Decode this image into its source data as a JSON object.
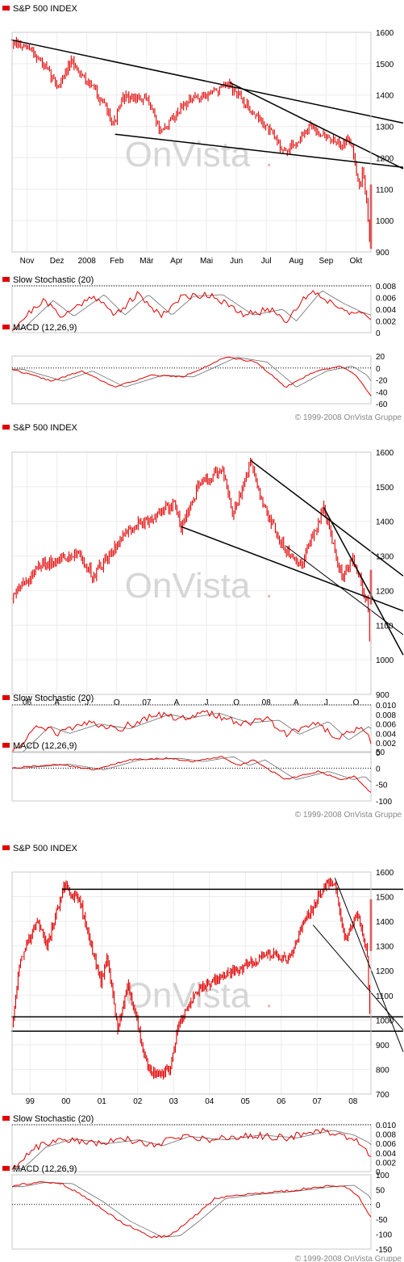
{
  "colors": {
    "price": "#e00000",
    "fast_line": "#6a6a6a",
    "trend": "#000000",
    "watermark": "#d6d6d6",
    "frame": "#c8c8c8",
    "copyright": "#888888"
  },
  "watermark": {
    "brand": "OnVista",
    "dot": "."
  },
  "copyright": "© 1999-2008 OnVista Gruppe",
  "chart_data": [
    {
      "type": "line",
      "title": "S&P 500 INDEX",
      "period": "1 year daily",
      "x_tick_labels": [
        "Nov",
        "Dez",
        "2008",
        "Feb",
        "Mär",
        "Apr",
        "Mai",
        "Jun",
        "Jul",
        "Aug",
        "Sep",
        "Okt"
      ],
      "ylim": [
        900,
        1600
      ],
      "y_ticks": [
        1600,
        1500,
        1400,
        1300,
        1200,
        1100,
        1000,
        900
      ],
      "x": [
        "2007-10-10",
        "2007-10-31",
        "2007-11-26",
        "2007-12-10",
        "2008-01-04",
        "2008-01-22",
        "2008-02-01",
        "2008-02-27",
        "2008-03-10",
        "2008-04-01",
        "2008-05-01",
        "2008-05-19",
        "2008-06-06",
        "2008-06-30",
        "2008-07-15",
        "2008-08-11",
        "2008-09-05",
        "2008-09-19",
        "2008-09-29",
        "2008-10-01",
        "2008-10-06",
        "2008-10-09",
        "2008-10-10"
      ],
      "y": [
        1565,
        1540,
        1430,
        1505,
        1410,
        1310,
        1395,
        1380,
        1275,
        1370,
        1410,
        1430,
        1365,
        1280,
        1215,
        1300,
        1245,
        1255,
        1105,
        1165,
        1055,
        910,
        995
      ],
      "trend_lines": [
        {
          "from": [
            "2007-10-09",
            1576
          ],
          "to": [
            "2008-10-14",
            1330
          ]
        },
        {
          "from": [
            "2008-01-23",
            1275
          ],
          "to": [
            "2008-10-14",
            1180
          ]
        },
        {
          "from": [
            "2008-05-19",
            1440
          ],
          "to": [
            "2008-10-14",
            1210
          ]
        }
      ],
      "indicators": [
        {
          "name": "Slow Stochastic (20)",
          "ylim": [
            0,
            0.008
          ],
          "y_ticks": [
            0.008,
            0.006,
            0.004,
            0.002,
            0.0
          ],
          "signal_level": 0.008,
          "x": [
            "2007-10-10",
            "2007-11-10",
            "2007-12-01",
            "2008-01-01",
            "2008-01-22",
            "2008-02-15",
            "2008-03-10",
            "2008-04-01",
            "2008-05-01",
            "2008-06-01",
            "2008-07-01",
            "2008-07-15",
            "2008-08-10",
            "2008-09-01",
            "2008-09-20",
            "2008-10-10"
          ],
          "y": [
            0.0006,
            0.0055,
            0.0028,
            0.0065,
            0.003,
            0.0065,
            0.003,
            0.0062,
            0.0065,
            0.003,
            0.004,
            0.002,
            0.0072,
            0.005,
            0.0035,
            0.0024
          ]
        },
        {
          "name": "MACD (12,26,9)",
          "ylim": [
            -60,
            20
          ],
          "y_ticks": [
            20,
            0,
            -20,
            -40,
            -60
          ],
          "signal_level": 0,
          "x": [
            "2007-10-10",
            "2007-11-20",
            "2007-12-20",
            "2008-01-22",
            "2008-03-01",
            "2008-04-01",
            "2008-05-15",
            "2008-06-15",
            "2008-07-15",
            "2008-08-15",
            "2008-09-10",
            "2008-09-25",
            "2008-10-10"
          ],
          "y": [
            -2,
            -22,
            -5,
            -32,
            -12,
            -15,
            18,
            10,
            -32,
            -5,
            3,
            -12,
            -48
          ]
        }
      ]
    },
    {
      "type": "line",
      "title": "S&P 500 INDEX",
      "period": "3 years",
      "x_tick_labels": [
        "06",
        "A",
        "J",
        "O",
        "07",
        "A",
        "J",
        "O",
        "08",
        "A",
        "J",
        "O"
      ],
      "ylim": [
        900,
        1600
      ],
      "y_ticks": [
        1600,
        1500,
        1400,
        1300,
        1200,
        1100,
        1000,
        900
      ],
      "x": [
        "2005-10-10",
        "2006-01-01",
        "2006-05-01",
        "2006-06-15",
        "2006-10-01",
        "2007-01-01",
        "2007-02-20",
        "2007-03-10",
        "2007-05-01",
        "2007-07-15",
        "2007-08-15",
        "2007-10-09",
        "2007-11-20",
        "2008-01-22",
        "2008-03-10",
        "2008-05-19",
        "2008-07-15",
        "2008-08-15",
        "2008-09-15",
        "2008-10-01",
        "2008-10-10"
      ],
      "y": [
        1180,
        1270,
        1310,
        1240,
        1380,
        1420,
        1455,
        1380,
        1500,
        1550,
        1420,
        1565,
        1440,
        1320,
        1275,
        1440,
        1230,
        1300,
        1200,
        1160,
        995
      ],
      "trend_lines": [
        {
          "from": [
            "2007-10-09",
            1576
          ],
          "to": [
            "2008-10-14",
            1310
          ]
        },
        {
          "from": [
            "2007-03-10",
            1385
          ],
          "to": [
            "2008-10-14",
            1175
          ]
        },
        {
          "from": [
            "2008-05-19",
            1440
          ],
          "to": [
            "2008-10-14",
            1180
          ]
        },
        {
          "from": [
            "2008-01-22",
            1330
          ],
          "to": [
            "2008-10-14",
            1140
          ]
        }
      ],
      "indicators": [
        {
          "name": "Slow Stochastic (20)",
          "ylim": [
            0,
            0.01
          ],
          "y_ticks": [
            0.01,
            0.008,
            0.006,
            0.004,
            0.002,
            0.0
          ],
          "signal_level": 0.01,
          "x": [
            "2005-10-10",
            "2006-01-01",
            "2006-03-01",
            "2006-06-01",
            "2006-09-01",
            "2007-01-01",
            "2007-03-01",
            "2007-06-01",
            "2007-09-01",
            "2007-12-01",
            "2008-02-01",
            "2008-05-01",
            "2008-07-01",
            "2008-09-01",
            "2008-10-10"
          ],
          "y": [
            0.0001,
            0.0055,
            0.004,
            0.006,
            0.005,
            0.008,
            0.0072,
            0.0083,
            0.0062,
            0.0068,
            0.0038,
            0.0065,
            0.0026,
            0.0055,
            0.0025
          ]
        },
        {
          "name": "MACD (12,26,9)",
          "ylim": [
            -100,
            50
          ],
          "y_ticks": [
            50,
            0,
            -50,
            -100
          ],
          "signal_level": 0,
          "x": [
            "2005-10-10",
            "2006-03-01",
            "2006-06-15",
            "2006-10-01",
            "2007-02-01",
            "2007-04-15",
            "2007-07-15",
            "2007-09-01",
            "2007-10-20",
            "2008-01-22",
            "2008-05-01",
            "2008-07-15",
            "2008-08-20",
            "2008-10-10"
          ],
          "y": [
            0,
            12,
            -5,
            25,
            30,
            20,
            35,
            8,
            25,
            -35,
            -10,
            -35,
            -25,
            -75
          ]
        }
      ]
    },
    {
      "type": "line",
      "title": "S&P 500 INDEX",
      "period": "10 years",
      "x_tick_labels": [
        "99",
        "00",
        "01",
        "02",
        "03",
        "04",
        "05",
        "06",
        "07",
        "08"
      ],
      "ylim": [
        700,
        1600
      ],
      "y_ticks": [
        1600,
        1500,
        1400,
        1300,
        1200,
        1100,
        1000,
        900,
        800,
        700
      ],
      "x": [
        "1998-10-10",
        "1999-01-01",
        "1999-07-01",
        "1999-10-01",
        "2000-03-24",
        "2000-09-01",
        "2001-04-01",
        "2001-06-01",
        "2001-09-21",
        "2002-01-01",
        "2002-07-23",
        "2002-10-09",
        "2003-03-11",
        "2003-06-01",
        "2004-01-01",
        "2005-01-01",
        "2006-01-01",
        "2006-06-15",
        "2007-01-01",
        "2007-07-15",
        "2007-10-09",
        "2008-01-22",
        "2008-05-19",
        "2008-09-01",
        "2008-10-10"
      ],
      "y": [
        980,
        1250,
        1400,
        1300,
        1545,
        1480,
        1150,
        1250,
        960,
        1150,
        800,
        780,
        800,
        980,
        1130,
        1200,
        1270,
        1240,
        1420,
        1550,
        1565,
        1320,
        1430,
        1280,
        910
      ],
      "trend_lines": [
        {
          "from": [
            "2000-03-01",
            1530
          ],
          "to": [
            "2008-10-14",
            1530
          ]
        },
        {
          "from": [
            "1998-10-01",
            1013
          ],
          "to": [
            "2008-10-14",
            1013
          ]
        },
        {
          "from": [
            "1998-10-01",
            955
          ],
          "to": [
            "2008-10-14",
            955
          ]
        },
        {
          "from": [
            "2007-10-09",
            1576
          ],
          "to": [
            "2008-10-14",
            1200
          ]
        },
        {
          "from": [
            "2007-03-01",
            1385
          ],
          "to": [
            "2008-10-14",
            1110
          ]
        }
      ],
      "indicators": [
        {
          "name": "Slow Stochastic (20)",
          "ylim": [
            0,
            0.01
          ],
          "y_ticks": [
            0.01,
            0.008,
            0.006,
            0.004,
            0.002,
            0.0
          ],
          "signal_level": 0.01,
          "x": [
            "1998-10-10",
            "1999-06-01",
            "2000-03-01",
            "2001-03-01",
            "2002-01-01",
            "2002-09-01",
            "2003-06-01",
            "2004-06-01",
            "2005-06-01",
            "2006-06-01",
            "2007-06-01",
            "2008-01-01",
            "2008-06-01",
            "2008-10-10"
          ],
          "y": [
            0.0006,
            0.0052,
            0.007,
            0.006,
            0.0068,
            0.0055,
            0.0075,
            0.0068,
            0.0078,
            0.0072,
            0.0088,
            0.0078,
            0.0062,
            0.0035
          ]
        },
        {
          "name": "MACD (12,26,9)",
          "ylim": [
            -150,
            100
          ],
          "y_ticks": [
            100,
            50,
            0,
            -50,
            -100,
            -150
          ],
          "signal_level": 0,
          "x": [
            "1998-10-10",
            "1999-06-01",
            "2000-03-01",
            "2001-01-01",
            "2001-10-01",
            "2002-09-01",
            "2003-03-01",
            "2003-10-01",
            "2004-06-01",
            "2005-06-01",
            "2006-06-01",
            "2007-06-01",
            "2008-01-01",
            "2008-06-01",
            "2008-10-10"
          ],
          "y": [
            60,
            75,
            70,
            10,
            -55,
            -110,
            -105,
            -50,
            20,
            35,
            45,
            60,
            65,
            30,
            -45
          ]
        }
      ]
    }
  ]
}
